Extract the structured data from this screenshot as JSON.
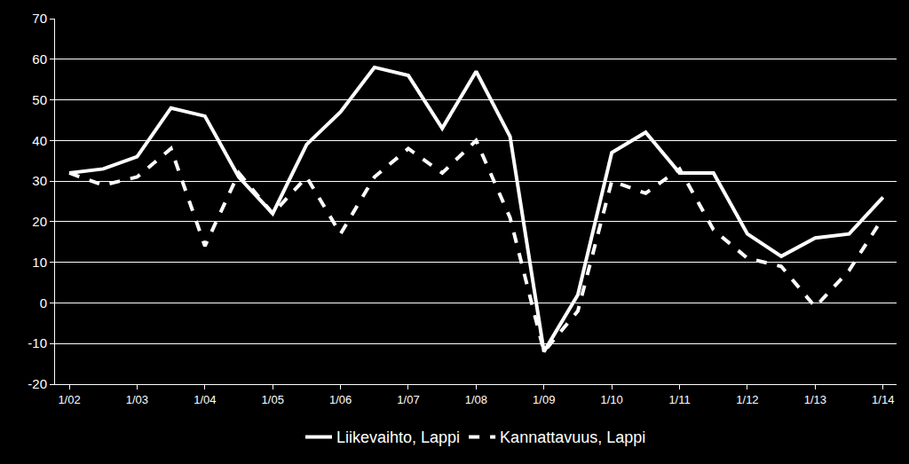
{
  "chart_data": {
    "type": "line",
    "categories": [
      "1/02",
      null,
      "1/03",
      null,
      "1/04",
      null,
      "1/05",
      null,
      "1/06",
      null,
      "1/07",
      null,
      "1/08",
      null,
      "1/09",
      null,
      "1/10",
      null,
      "1/11",
      null,
      "1/12",
      null,
      "1/13",
      null,
      "1/14"
    ],
    "series": [
      {
        "name": "Liikevaihto, Lappi",
        "color": "#ffffff",
        "line_style": "solid",
        "values": [
          32,
          33,
          36,
          48,
          46,
          31,
          22,
          39,
          47,
          58,
          56,
          43,
          57,
          41,
          -12,
          2,
          37,
          42,
          32,
          32,
          17,
          11.5,
          16,
          17,
          26
        ]
      },
      {
        "name": "Kannattavuus, Lappi",
        "color": "#ffffff",
        "line_style": "dash",
        "values": [
          32,
          29,
          31,
          38,
          14,
          32,
          22,
          31,
          17,
          31,
          38,
          32,
          40,
          21,
          -12,
          -2,
          30,
          27,
          33,
          18,
          11,
          9,
          -1,
          8,
          21
        ]
      }
    ],
    "ylim": [
      -20,
      70
    ],
    "yticks": [
      -20,
      -10,
      0,
      10,
      20,
      30,
      40,
      50,
      60,
      70
    ],
    "grid": true,
    "legend": "bottom"
  }
}
